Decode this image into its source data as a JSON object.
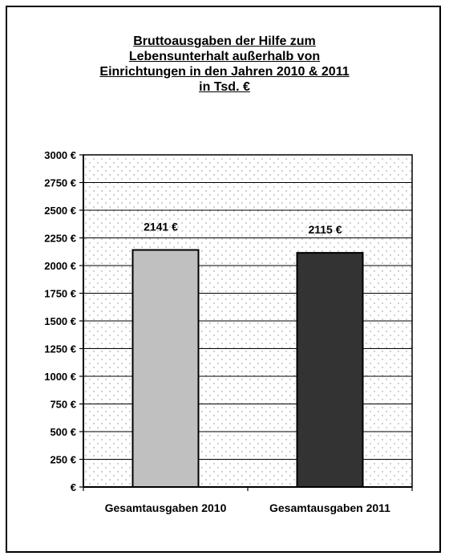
{
  "chart_data": {
    "type": "bar",
    "title_lines": [
      "Bruttoausgaben der Hilfe zum",
      "Lebensunterhalt außerhalb von",
      "Einrichtungen in den Jahren 2010 & 2011",
      "in Tsd. €"
    ],
    "categories": [
      "Gesamtausgaben 2010",
      "Gesamtausgaben 2011"
    ],
    "values": [
      2141,
      2115
    ],
    "data_labels": [
      "2141 €",
      "2115 €"
    ],
    "bar_colors": [
      "#c0c0c0",
      "#333333"
    ],
    "ylim": [
      0,
      3000
    ],
    "yticks": [
      0,
      250,
      500,
      750,
      1000,
      1250,
      1500,
      1750,
      2000,
      2250,
      2500,
      2750,
      3000
    ],
    "ytick_labels": [
      "€",
      "250 €",
      "500 €",
      "750 €",
      "1000 €",
      "1250 €",
      "1500 €",
      "1750 €",
      "2000 €",
      "2250 €",
      "2500 €",
      "2750 €",
      "3000 €"
    ],
    "grid": true,
    "plot_background": "dotted",
    "legend": "none"
  }
}
